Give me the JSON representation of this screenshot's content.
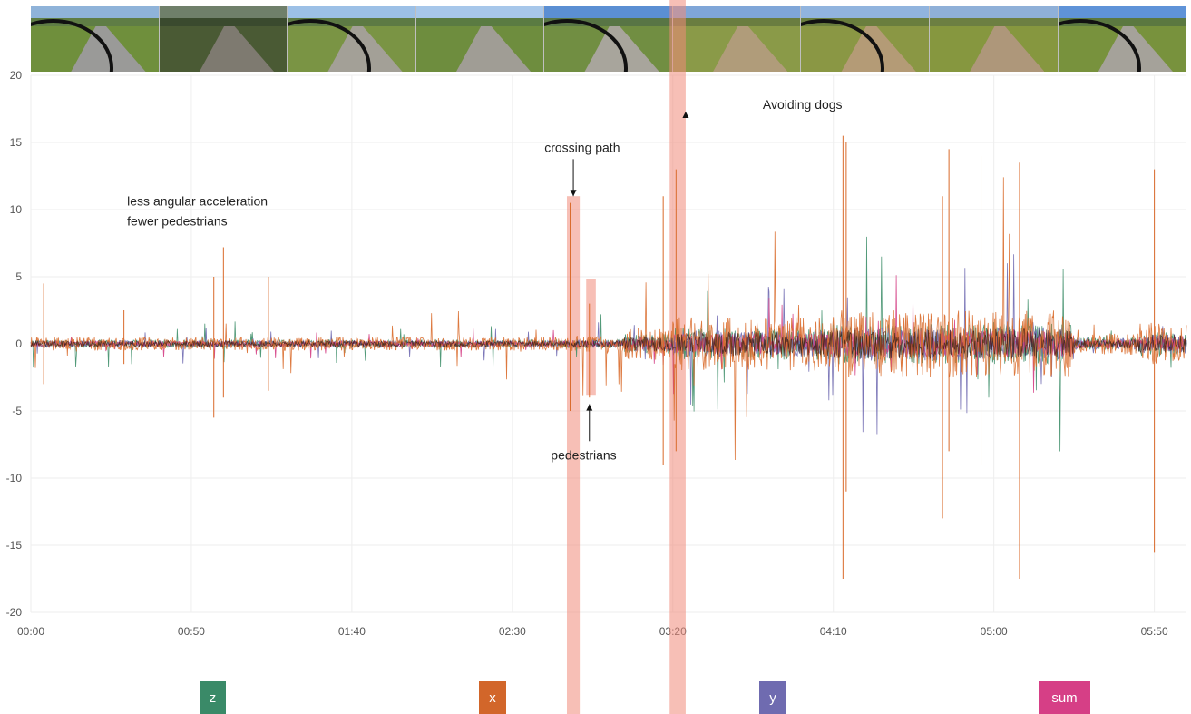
{
  "thumbnails": [
    {
      "sky": "#8fb3d9",
      "trees": "#5f7d45",
      "grass": "#6f8f3c",
      "path": "#9a9a98"
    },
    {
      "sky": "#6f7f6a",
      "trees": "#3a4a2e",
      "grass": "#4a5a34",
      "path": "#7e7a70"
    },
    {
      "sky": "#9cc0e6",
      "trees": "#5d7a44",
      "grass": "#7a9444",
      "path": "#a3a097"
    },
    {
      "sky": "#a7c7ea",
      "trees": "#5a7b42",
      "grass": "#6e8d3e",
      "path": "#a09d95"
    },
    {
      "sky": "#5b8fd3",
      "trees": "#587545",
      "grass": "#718e42",
      "path": "#a8a59c"
    },
    {
      "sky": "#7fa6d8",
      "trees": "#6a7d40",
      "grass": "#8a9a48",
      "path": "#b09c7a"
    },
    {
      "sky": "#91b4de",
      "trees": "#6a7e3e",
      "grass": "#8a9744",
      "path": "#b49b76"
    },
    {
      "sky": "#8fb0d8",
      "trees": "#6c7f42",
      "grass": "#86973f",
      "path": "#ae977a"
    },
    {
      "sky": "#5f93d8",
      "trees": "#5b7840",
      "grass": "#78923d",
      "path": "#a5a29a"
    }
  ],
  "chart_data": {
    "type": "line",
    "xlabel": "",
    "ylabel": "",
    "ylim": [
      -20,
      20
    ],
    "xlim_seconds": [
      0,
      360
    ],
    "x_tick_labels": [
      "00:00",
      "00:50",
      "01:40",
      "02:30",
      "03:20",
      "04:10",
      "05:00",
      "05:50"
    ],
    "y_tick_labels": [
      "-20",
      "-15",
      "-10",
      "-5",
      "0",
      "5",
      "10",
      "15",
      "20"
    ],
    "grid": true,
    "series": [
      {
        "name": "z",
        "color": "#3f8f6a",
        "amplitude": 0.6
      },
      {
        "name": "x",
        "color": "#d96a2a",
        "amplitude": 1.0
      },
      {
        "name": "y",
        "color": "#6e68b0",
        "amplitude": 0.5
      },
      {
        "name": "sum",
        "color": "#d43d84",
        "amplitude": 0.4
      }
    ],
    "envelope": [
      {
        "start": "00:00",
        "end": "02:48",
        "typical": 0.5,
        "peak": 3
      },
      {
        "start": "02:48",
        "end": "03:05",
        "typical": 0.6,
        "peak": 4
      },
      {
        "start": "03:05",
        "end": "03:20",
        "typical": 1.2,
        "peak": 5
      },
      {
        "start": "03:20",
        "end": "04:10",
        "typical": 2.0,
        "peak": 10
      },
      {
        "start": "04:10",
        "end": "05:25",
        "typical": 2.5,
        "peak": 14
      },
      {
        "start": "05:25",
        "end": "05:45",
        "typical": 0.8,
        "peak": 2
      },
      {
        "start": "05:45",
        "end": "06:00",
        "typical": 1.5,
        "peak": 3
      }
    ],
    "spikes": [
      {
        "t": "00:04",
        "top": 4.5,
        "bottom": -3
      },
      {
        "t": "00:29",
        "top": 2.5,
        "bottom": -1.5
      },
      {
        "t": "00:57",
        "top": 5,
        "bottom": -5.5
      },
      {
        "t": "01:00",
        "top": 7.2,
        "bottom": -4
      },
      {
        "t": "01:14",
        "top": 5,
        "bottom": -3.5
      },
      {
        "t": "02:48",
        "top": 10.5,
        "bottom": -5
      },
      {
        "t": "02:54",
        "top": 3,
        "bottom": -4
      },
      {
        "t": "03:17",
        "top": 11,
        "bottom": -9
      },
      {
        "t": "03:21",
        "top": 13,
        "bottom": -8
      },
      {
        "t": "04:13",
        "top": 15.5,
        "bottom": -17.5
      },
      {
        "t": "04:14",
        "top": 15,
        "bottom": -11
      },
      {
        "t": "04:44",
        "top": 11,
        "bottom": -13
      },
      {
        "t": "04:46",
        "top": 14.5,
        "bottom": -8
      },
      {
        "t": "04:56",
        "top": 14,
        "bottom": -9
      },
      {
        "t": "05:08",
        "top": 13.5,
        "bottom": -17.5
      },
      {
        "t": "05:50",
        "top": 13,
        "bottom": -15.5
      }
    ],
    "highlights": [
      {
        "start": "02:47",
        "end": "02:51",
        "ymin": -20,
        "ymax": 11,
        "full": true,
        "color": "#f08a7a",
        "opacity": 0.55
      },
      {
        "start": "02:53",
        "end": "02:56",
        "ymin": -3.8,
        "ymax": 4.8,
        "full": false,
        "color": "#f08a7a",
        "opacity": 0.55
      },
      {
        "start": "03:19",
        "end": "03:24",
        "ymin": -20,
        "ymax": 20,
        "full": true,
        "color": "#f08a7a",
        "opacity": 0.55
      }
    ],
    "annotations": [
      {
        "lines": [
          "less angular acceleration",
          "fewer pedestrians"
        ],
        "x": "00:30",
        "y": 10.3
      },
      {
        "lines": [
          "crossing path"
        ],
        "x": "02:40",
        "y": 14.3,
        "arrow_to": {
          "x": "02:49",
          "y": 11
        }
      },
      {
        "lines": [
          "pedestrians"
        ],
        "x": "02:42",
        "y": -8.6,
        "arrow_to": {
          "x": "02:54",
          "y": -4.5
        }
      },
      {
        "lines": [
          "Avoiding dogs"
        ],
        "x": "03:48",
        "y": 17.5,
        "arrow_to": {
          "x": "03:24",
          "y": 17.3
        }
      }
    ]
  },
  "legend": [
    {
      "label": "z",
      "color": "#3a8a68"
    },
    {
      "label": "x",
      "color": "#d2662a"
    },
    {
      "label": "y",
      "color": "#6f6bb0"
    },
    {
      "label": "sum",
      "color": "#d63f86"
    }
  ]
}
